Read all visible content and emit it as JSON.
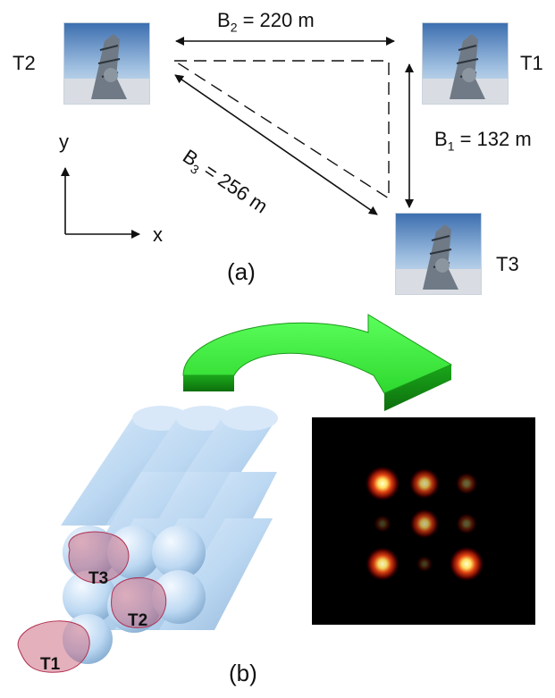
{
  "panel_a": {
    "caption": "(a)",
    "telescopes": [
      "T2",
      "T1",
      "T3"
    ],
    "baselines": [
      {
        "symbol": "B",
        "subscript": "2",
        "rest": " = 220 m"
      },
      {
        "symbol": "B",
        "subscript": "1",
        "rest": " = 132 m"
      },
      {
        "symbol": "B",
        "subscript": "3",
        "rest": " = 256 m"
      }
    ],
    "axes": {
      "x": "x",
      "y": "y"
    }
  },
  "panel_b": {
    "caption": "(b)",
    "fiber_labels": [
      "T3",
      "T2",
      "T1"
    ],
    "psf_spots": [
      {
        "row": 0,
        "col": 0,
        "intensity": 1.0
      },
      {
        "row": 0,
        "col": 1,
        "intensity": 0.8
      },
      {
        "row": 0,
        "col": 2,
        "intensity": 0.4
      },
      {
        "row": 1,
        "col": 0,
        "intensity": 0.18
      },
      {
        "row": 1,
        "col": 1,
        "intensity": 0.75
      },
      {
        "row": 1,
        "col": 2,
        "intensity": 0.35
      },
      {
        "row": 2,
        "col": 0,
        "intensity": 0.95
      },
      {
        "row": 2,
        "col": 1,
        "intensity": 0.12
      },
      {
        "row": 2,
        "col": 2,
        "intensity": 1.0
      }
    ]
  },
  "colors": {
    "arrow_green": "#2ee02e",
    "fiber_blue": "#bcd8f2",
    "overlay_red": "#c0506a",
    "psf_hot": "#ffffc0"
  }
}
